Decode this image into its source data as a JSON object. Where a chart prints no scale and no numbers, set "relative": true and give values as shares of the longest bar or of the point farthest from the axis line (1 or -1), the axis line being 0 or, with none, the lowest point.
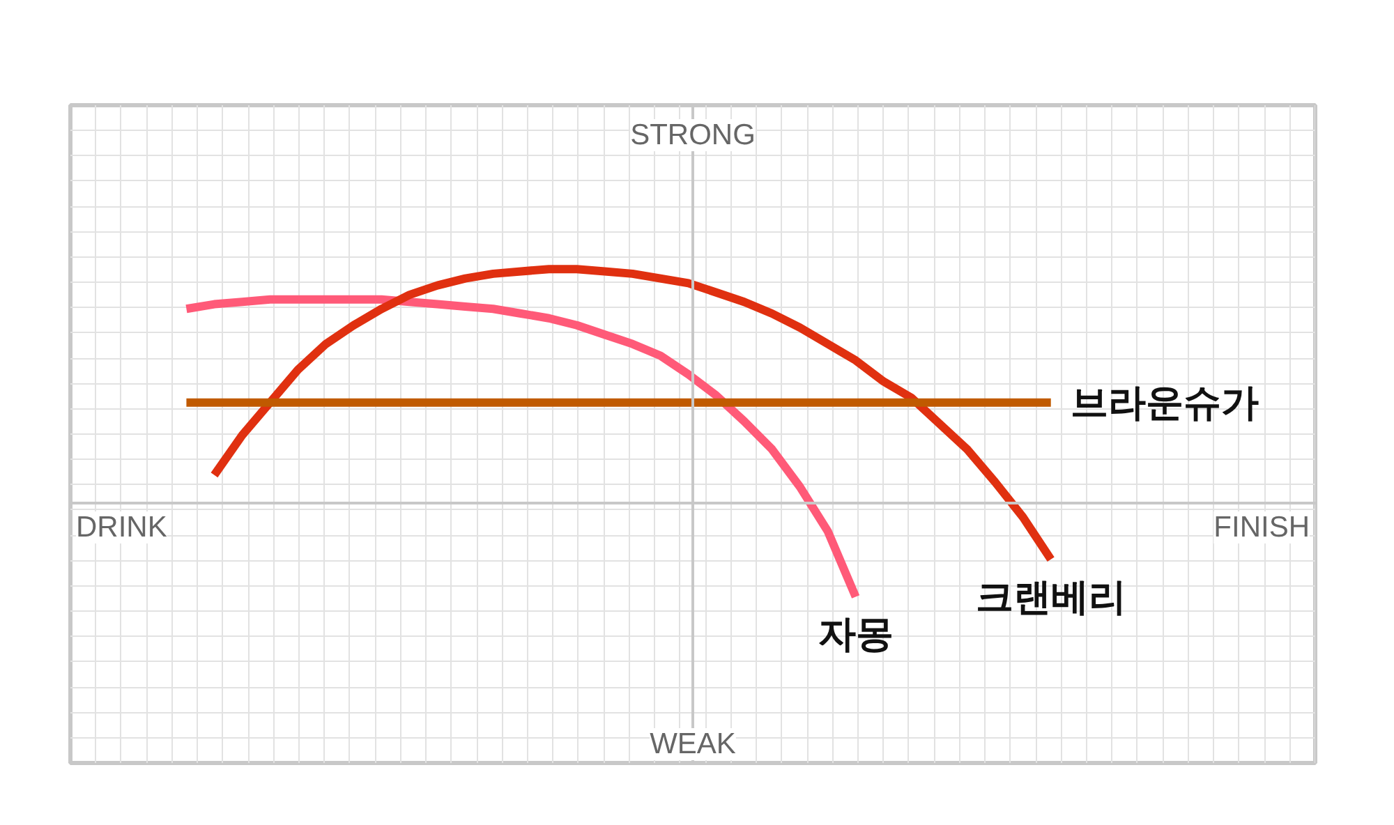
{
  "chart_data": {
    "type": "line",
    "relative": true,
    "grid": true,
    "categories": [
      null,
      null,
      null,
      null,
      null,
      null,
      null,
      null,
      null,
      null,
      null,
      null,
      null,
      null,
      null,
      null,
      null,
      null,
      null,
      null,
      null,
      null,
      null,
      null,
      null,
      null,
      null,
      null,
      null,
      null,
      null,
      null
    ],
    "annotations": [
      "STRONG",
      "WEAK",
      "DRINK",
      "FINISH"
    ],
    "series": [
      {
        "name": "자몽",
        "color": "#ff5a78",
        "values": [
          0.83,
          0.85,
          0.86,
          0.87,
          0.87,
          0.87,
          0.87,
          0.87,
          0.86,
          0.85,
          0.84,
          0.83,
          0.81,
          0.79,
          0.76,
          0.72,
          0.68,
          0.63,
          0.55,
          0.46,
          0.35,
          0.23,
          0.07,
          -0.12,
          -0.4,
          null,
          null,
          null,
          null,
          null,
          null,
          null
        ]
      },
      {
        "name": "크랜베리",
        "color": "#e03010",
        "values": [
          null,
          0.12,
          0.29,
          0.43,
          0.57,
          0.68,
          0.76,
          0.83,
          0.89,
          0.93,
          0.96,
          0.98,
          0.99,
          1.0,
          1.0,
          0.99,
          0.98,
          0.96,
          0.94,
          0.9,
          0.86,
          0.81,
          0.75,
          0.68,
          0.61,
          0.52,
          0.45,
          0.34,
          0.23,
          0.09,
          -0.06,
          -0.24
        ]
      },
      {
        "name": "브라운슈가",
        "color": "#c05a00",
        "values": [
          0.43,
          0.43,
          0.43,
          0.43,
          0.43,
          0.43,
          0.43,
          0.43,
          0.43,
          0.43,
          0.43,
          0.43,
          0.43,
          0.43,
          0.43,
          0.43,
          0.43,
          0.43,
          0.43,
          0.43,
          0.43,
          0.43,
          0.43,
          0.43,
          0.43,
          0.43,
          0.43,
          0.43,
          0.43,
          0.43,
          0.43,
          0.43
        ]
      }
    ]
  }
}
